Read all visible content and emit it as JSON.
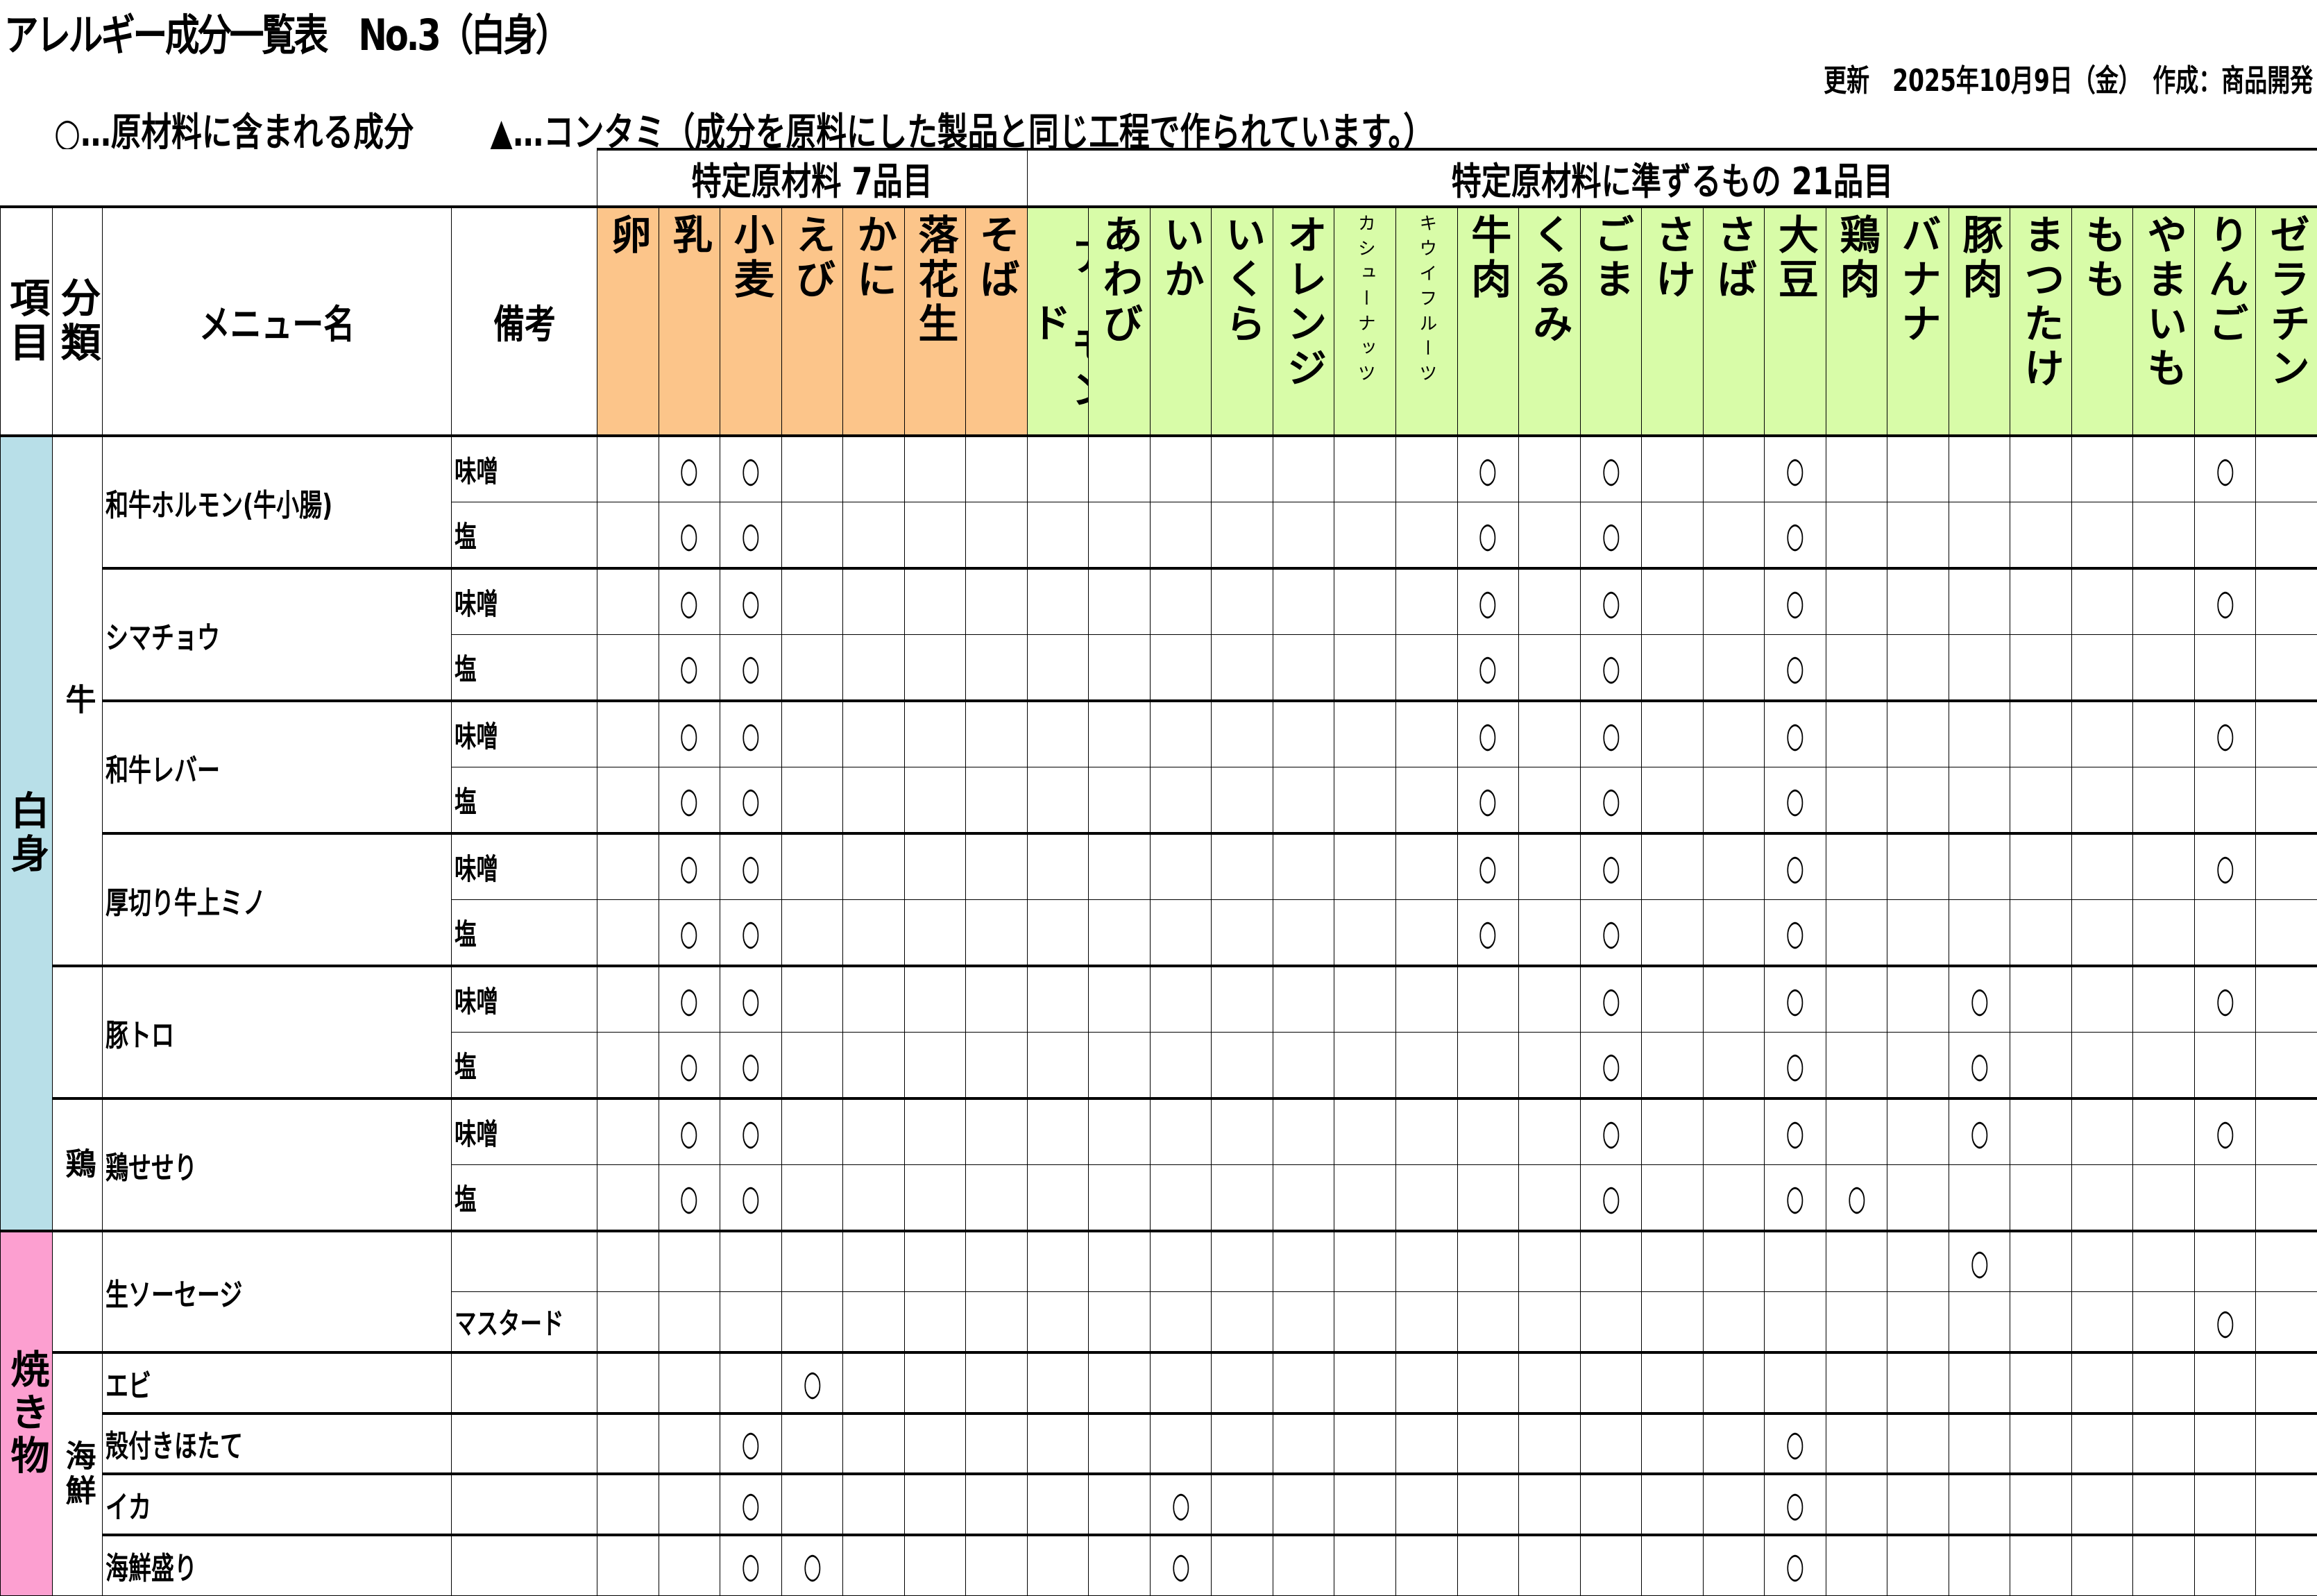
{
  "title": "アレルギー成分一覧表　No.3（白身）",
  "updated": "更新　2025年10月9日（金）　作成：商品開発",
  "legend": {
    "included": "○…原材料に含まれる成分",
    "contamination": "▲…コンタミ（成分を原料にした製品と同じ工程で作られています。）",
    "included_symbol": "○"
  },
  "groups": [
    {
      "label": "特定原材料 7品目",
      "count": 7,
      "color": "#fcc58a"
    },
    {
      "label": "特定原材料に準ずるもの 21品目",
      "count": 21,
      "color": "#d8fca8"
    }
  ],
  "headers": {
    "item": "項目",
    "category": "分類",
    "menu": "メニュー名",
    "note": "備考"
  },
  "allergens": [
    "卵",
    "乳",
    "小麦",
    "えび",
    "かに",
    "落花生",
    "そば",
    "アーモンド",
    "あわび",
    "いか",
    "いくら",
    "オレンジ",
    "カシューナッツ",
    "キウイフルーツ",
    "牛肉",
    "くるみ",
    "ごま",
    "さけ",
    "さば",
    "大豆",
    "鶏肉",
    "バナナ",
    "豚肉",
    "まつたけ",
    "もも",
    "やまいも",
    "りんご",
    "ゼラチン"
  ],
  "small_headers": [
    "カシューナッツ",
    "キウイフルーツ"
  ],
  "sections": [
    {
      "label": "白身",
      "color": "#b8dfe8",
      "categories": [
        {
          "label": "牛",
          "menus": [
            {
              "name": "和牛ホルモン(牛小腸)",
              "variants": [
                {
                  "note": "味噌",
                  "contains": [
                    "乳",
                    "小麦",
                    "牛肉",
                    "ごま",
                    "大豆",
                    "りんご"
                  ]
                },
                {
                  "note": "塩",
                  "contains": [
                    "乳",
                    "小麦",
                    "牛肉",
                    "ごま",
                    "大豆"
                  ]
                }
              ]
            },
            {
              "name": "シマチョウ",
              "variants": [
                {
                  "note": "味噌",
                  "contains": [
                    "乳",
                    "小麦",
                    "牛肉",
                    "ごま",
                    "大豆",
                    "りんご"
                  ]
                },
                {
                  "note": "塩",
                  "contains": [
                    "乳",
                    "小麦",
                    "牛肉",
                    "ごま",
                    "大豆"
                  ]
                }
              ]
            },
            {
              "name": "和牛レバー",
              "variants": [
                {
                  "note": "味噌",
                  "contains": [
                    "乳",
                    "小麦",
                    "牛肉",
                    "ごま",
                    "大豆",
                    "りんご"
                  ]
                },
                {
                  "note": "塩",
                  "contains": [
                    "乳",
                    "小麦",
                    "牛肉",
                    "ごま",
                    "大豆"
                  ]
                }
              ]
            },
            {
              "name": "厚切り牛上ミノ",
              "variants": [
                {
                  "note": "味噌",
                  "contains": [
                    "乳",
                    "小麦",
                    "牛肉",
                    "ごま",
                    "大豆",
                    "りんご"
                  ]
                },
                {
                  "note": "塩",
                  "contains": [
                    "乳",
                    "小麦",
                    "牛肉",
                    "ごま",
                    "大豆"
                  ]
                }
              ]
            }
          ]
        },
        {
          "label": "",
          "menus": [
            {
              "name": "豚トロ",
              "variants": [
                {
                  "note": "味噌",
                  "contains": [
                    "乳",
                    "小麦",
                    "ごま",
                    "大豆",
                    "豚肉",
                    "りんご"
                  ]
                },
                {
                  "note": "塩",
                  "contains": [
                    "乳",
                    "小麦",
                    "ごま",
                    "大豆",
                    "豚肉"
                  ]
                }
              ]
            }
          ]
        },
        {
          "label": "鶏",
          "menus": [
            {
              "name": "鶏せせり",
              "variants": [
                {
                  "note": "味噌",
                  "contains": [
                    "乳",
                    "小麦",
                    "ごま",
                    "大豆",
                    "豚肉",
                    "りんご"
                  ]
                },
                {
                  "note": "塩",
                  "contains": [
                    "乳",
                    "小麦",
                    "ごま",
                    "大豆",
                    "鶏肉"
                  ]
                }
              ]
            }
          ]
        }
      ]
    },
    {
      "label": "焼き物",
      "color": "#fc9fd0",
      "categories": [
        {
          "label": "",
          "menus": [
            {
              "name": "生ソーセージ",
              "variants": [
                {
                  "note": "",
                  "contains": [
                    "豚肉"
                  ]
                },
                {
                  "note": "マスタード",
                  "contains": [
                    "りんご"
                  ]
                }
              ]
            }
          ]
        },
        {
          "label": "海鮮",
          "menus": [
            {
              "name": "エビ",
              "variants": [
                {
                  "note": "",
                  "contains": [
                    "えび"
                  ]
                }
              ]
            },
            {
              "name": "殻付きほたて",
              "variants": [
                {
                  "note": "",
                  "contains": [
                    "小麦",
                    "大豆"
                  ]
                }
              ]
            },
            {
              "name": "イカ",
              "variants": [
                {
                  "note": "",
                  "contains": [
                    "小麦",
                    "いか",
                    "大豆"
                  ]
                }
              ]
            },
            {
              "name": "海鮮盛り",
              "variants": [
                {
                  "note": "",
                  "contains": [
                    "小麦",
                    "えび",
                    "いか",
                    "大豆"
                  ]
                }
              ]
            }
          ]
        }
      ]
    }
  ]
}
